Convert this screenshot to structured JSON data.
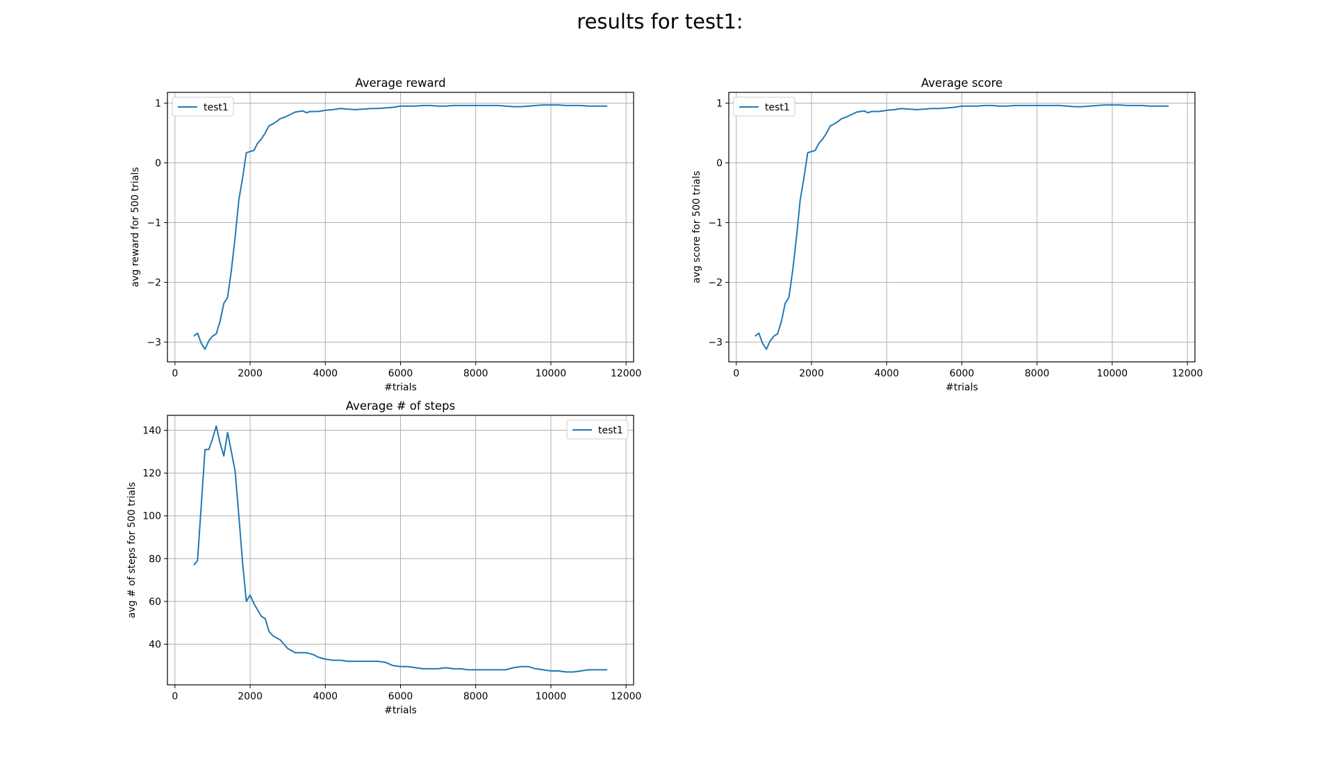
{
  "figure": {
    "title": "results for test1:"
  },
  "chart_data": [
    {
      "type": "line",
      "title": "Average reward",
      "xlabel": "#trials",
      "ylabel": "avg reward for 500 trials",
      "xlim": [
        -200,
        12200
      ],
      "ylim": [
        -3.33,
        1.18
      ],
      "xticks": [
        0,
        2000,
        4000,
        6000,
        8000,
        10000,
        12000
      ],
      "yticks": [
        -3,
        -2,
        -1,
        0,
        1
      ],
      "grid": true,
      "legend": "top-left",
      "series": [
        {
          "name": "test1",
          "color": "#1f77b4",
          "x": [
            500,
            600,
            700,
            800,
            900,
            1000,
            1100,
            1200,
            1300,
            1400,
            1500,
            1600,
            1700,
            1800,
            1900,
            2000,
            2100,
            2200,
            2300,
            2400,
            2500,
            2600,
            2700,
            2800,
            2900,
            3000,
            3100,
            3200,
            3300,
            3400,
            3500,
            3600,
            3700,
            3800,
            3900,
            4000,
            4200,
            4400,
            4600,
            4800,
            5000,
            5200,
            5400,
            5600,
            5800,
            6000,
            6200,
            6400,
            6600,
            6800,
            7000,
            7200,
            7400,
            7600,
            7800,
            8000,
            8200,
            8400,
            8600,
            8800,
            9000,
            9200,
            9400,
            9600,
            9800,
            10000,
            10200,
            10400,
            10600,
            10800,
            11000,
            11200,
            11500
          ],
          "y": [
            -2.9,
            -2.85,
            -3.02,
            -3.12,
            -2.98,
            -2.9,
            -2.86,
            -2.65,
            -2.35,
            -2.25,
            -1.8,
            -1.25,
            -0.62,
            -0.25,
            0.17,
            0.19,
            0.21,
            0.33,
            0.4,
            0.5,
            0.62,
            0.65,
            0.69,
            0.74,
            0.76,
            0.79,
            0.82,
            0.85,
            0.86,
            0.87,
            0.84,
            0.86,
            0.86,
            0.86,
            0.87,
            0.88,
            0.89,
            0.91,
            0.9,
            0.89,
            0.9,
            0.91,
            0.91,
            0.92,
            0.93,
            0.95,
            0.95,
            0.95,
            0.96,
            0.96,
            0.95,
            0.95,
            0.96,
            0.96,
            0.96,
            0.96,
            0.96,
            0.96,
            0.96,
            0.95,
            0.94,
            0.94,
            0.95,
            0.96,
            0.97,
            0.97,
            0.97,
            0.96,
            0.96,
            0.96,
            0.95,
            0.95,
            0.95
          ]
        }
      ]
    },
    {
      "type": "line",
      "title": "Average score",
      "xlabel": "#trials",
      "ylabel": "avg score for 500 trials",
      "xlim": [
        -200,
        12200
      ],
      "ylim": [
        -3.33,
        1.18
      ],
      "xticks": [
        0,
        2000,
        4000,
        6000,
        8000,
        10000,
        12000
      ],
      "yticks": [
        -3,
        -2,
        -1,
        0,
        1
      ],
      "grid": true,
      "legend": "top-left",
      "series": [
        {
          "name": "test1",
          "color": "#1f77b4",
          "x": [
            500,
            600,
            700,
            800,
            900,
            1000,
            1100,
            1200,
            1300,
            1400,
            1500,
            1600,
            1700,
            1800,
            1900,
            2000,
            2100,
            2200,
            2300,
            2400,
            2500,
            2600,
            2700,
            2800,
            2900,
            3000,
            3100,
            3200,
            3300,
            3400,
            3500,
            3600,
            3700,
            3800,
            3900,
            4000,
            4200,
            4400,
            4600,
            4800,
            5000,
            5200,
            5400,
            5600,
            5800,
            6000,
            6200,
            6400,
            6600,
            6800,
            7000,
            7200,
            7400,
            7600,
            7800,
            8000,
            8200,
            8400,
            8600,
            8800,
            9000,
            9200,
            9400,
            9600,
            9800,
            10000,
            10200,
            10400,
            10600,
            10800,
            11000,
            11200,
            11500
          ],
          "y": [
            -2.9,
            -2.85,
            -3.02,
            -3.12,
            -2.98,
            -2.9,
            -2.86,
            -2.65,
            -2.35,
            -2.25,
            -1.8,
            -1.25,
            -0.62,
            -0.25,
            0.17,
            0.19,
            0.21,
            0.33,
            0.4,
            0.5,
            0.62,
            0.65,
            0.69,
            0.74,
            0.76,
            0.79,
            0.82,
            0.85,
            0.86,
            0.87,
            0.84,
            0.86,
            0.86,
            0.86,
            0.87,
            0.88,
            0.89,
            0.91,
            0.9,
            0.89,
            0.9,
            0.91,
            0.91,
            0.92,
            0.93,
            0.95,
            0.95,
            0.95,
            0.96,
            0.96,
            0.95,
            0.95,
            0.96,
            0.96,
            0.96,
            0.96,
            0.96,
            0.96,
            0.96,
            0.95,
            0.94,
            0.94,
            0.95,
            0.96,
            0.97,
            0.97,
            0.97,
            0.96,
            0.96,
            0.96,
            0.95,
            0.95,
            0.95
          ]
        }
      ]
    },
    {
      "type": "line",
      "title": "Average # of steps",
      "xlabel": "#trials",
      "ylabel": "avg # of steps for 500 trials",
      "xlim": [
        -200,
        12200
      ],
      "ylim": [
        21,
        147
      ],
      "xticks": [
        0,
        2000,
        4000,
        6000,
        8000,
        10000,
        12000
      ],
      "yticks": [
        40,
        60,
        80,
        100,
        120,
        140
      ],
      "grid": true,
      "legend": "top-right",
      "series": [
        {
          "name": "test1",
          "color": "#1f77b4",
          "x": [
            500,
            600,
            700,
            800,
            900,
            1000,
            1100,
            1200,
            1300,
            1400,
            1500,
            1600,
            1700,
            1800,
            1900,
            2000,
            2100,
            2200,
            2300,
            2400,
            2500,
            2600,
            2700,
            2800,
            2900,
            3000,
            3100,
            3200,
            3300,
            3400,
            3500,
            3600,
            3700,
            3800,
            3900,
            4000,
            4200,
            4400,
            4600,
            4800,
            5000,
            5200,
            5400,
            5600,
            5800,
            6000,
            6200,
            6400,
            6600,
            6800,
            7000,
            7200,
            7400,
            7600,
            7800,
            8000,
            8200,
            8400,
            8600,
            8800,
            9000,
            9200,
            9400,
            9600,
            9800,
            10000,
            10200,
            10400,
            10600,
            10800,
            11000,
            11200,
            11500
          ],
          "y": [
            77,
            79,
            105,
            131,
            131,
            136,
            142,
            134,
            128,
            139,
            130,
            121,
            100,
            78,
            60,
            63,
            59,
            56,
            53,
            52,
            46,
            44,
            43,
            42,
            40,
            38,
            37,
            36,
            36,
            36,
            36,
            35.5,
            35,
            34,
            33.5,
            33,
            32.5,
            32.5,
            32,
            32,
            32,
            32,
            32,
            31.5,
            30,
            29.5,
            29.5,
            29,
            28.5,
            28.5,
            28.5,
            29,
            28.5,
            28.5,
            28,
            28,
            28,
            28,
            28,
            28,
            29,
            29.5,
            29.5,
            28.5,
            28,
            27.5,
            27.5,
            27,
            27,
            27.5,
            28,
            28,
            28
          ]
        }
      ]
    }
  ]
}
